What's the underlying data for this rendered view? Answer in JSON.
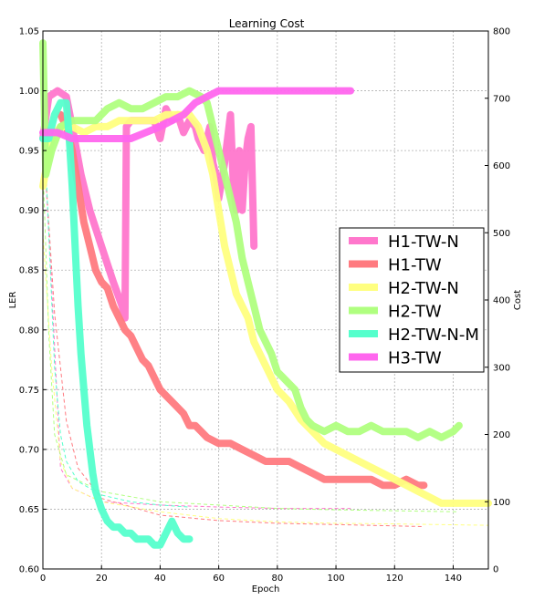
{
  "chart_data": {
    "type": "line",
    "title": "Learning Cost",
    "xlabel": "Epoch",
    "ylabel": "LER",
    "y2label": "Cost",
    "xlim": [
      0,
      152
    ],
    "ylim": [
      0.6,
      1.05
    ],
    "y2lim": [
      0,
      800
    ],
    "xticks": [
      "0",
      "20",
      "40",
      "60",
      "80",
      "100",
      "120",
      "140"
    ],
    "yticks": [
      "0.60",
      "0.65",
      "0.70",
      "0.75",
      "0.80",
      "0.85",
      "0.90",
      "0.95",
      "1.00",
      "1.05"
    ],
    "y2ticks": [
      "0",
      "100",
      "200",
      "300",
      "400",
      "500",
      "600",
      "700",
      "800"
    ],
    "grid": true,
    "legend_position": "center-right",
    "series": [
      {
        "name": "H1-TW-N",
        "color": "#ff77cc",
        "ler": [
          [
            0,
            0.96
          ],
          [
            2,
            0.995
          ],
          [
            5,
            1.0
          ],
          [
            8,
            0.995
          ],
          [
            10,
            0.97
          ],
          [
            13,
            0.93
          ],
          [
            16,
            0.9
          ],
          [
            20,
            0.87
          ],
          [
            24,
            0.84
          ],
          [
            27,
            0.82
          ],
          [
            28,
            0.81
          ],
          [
            28.5,
            0.97
          ],
          [
            30,
            0.975
          ],
          [
            34,
            0.975
          ],
          [
            38,
            0.975
          ],
          [
            40,
            0.96
          ],
          [
            42,
            0.985
          ],
          [
            44,
            0.975
          ],
          [
            46,
            0.98
          ],
          [
            48,
            0.965
          ],
          [
            50,
            0.975
          ],
          [
            52,
            0.97
          ],
          [
            53,
            0.96
          ],
          [
            55,
            0.95
          ],
          [
            57,
            0.97
          ],
          [
            58,
            0.94
          ],
          [
            59,
            0.93
          ],
          [
            60,
            0.91
          ],
          [
            62,
            0.94
          ],
          [
            64,
            0.98
          ],
          [
            65,
            0.92
          ],
          [
            66,
            0.9
          ],
          [
            67,
            0.95
          ],
          [
            68,
            0.9
          ],
          [
            69,
            0.94
          ],
          [
            70,
            0.96
          ],
          [
            71,
            0.97
          ],
          [
            72,
            0.87
          ]
        ],
        "cost": [
          [
            0,
            660
          ],
          [
            3,
            420
          ],
          [
            6,
            150
          ],
          [
            10,
            120
          ],
          [
            20,
            100
          ],
          [
            40,
            95
          ],
          [
            60,
            92
          ],
          [
            80,
            90
          ],
          [
            100,
            90
          ],
          [
            105,
            90
          ]
        ]
      },
      {
        "name": "H1-TW",
        "color": "#ff7a80",
        "ler": [
          [
            6,
            0.98
          ],
          [
            8,
            0.97
          ],
          [
            10,
            0.95
          ],
          [
            12,
            0.92
          ],
          [
            14,
            0.89
          ],
          [
            16,
            0.87
          ],
          [
            18,
            0.85
          ],
          [
            20,
            0.84
          ],
          [
            22,
            0.835
          ],
          [
            24,
            0.82
          ],
          [
            26,
            0.81
          ],
          [
            28,
            0.8
          ],
          [
            30,
            0.795
          ],
          [
            32,
            0.785
          ],
          [
            34,
            0.775
          ],
          [
            36,
            0.77
          ],
          [
            38,
            0.76
          ],
          [
            40,
            0.75
          ],
          [
            42,
            0.745
          ],
          [
            44,
            0.74
          ],
          [
            46,
            0.735
          ],
          [
            48,
            0.73
          ],
          [
            50,
            0.72
          ],
          [
            52,
            0.72
          ],
          [
            54,
            0.715
          ],
          [
            56,
            0.71
          ],
          [
            60,
            0.705
          ],
          [
            64,
            0.705
          ],
          [
            68,
            0.7
          ],
          [
            72,
            0.695
          ],
          [
            76,
            0.69
          ],
          [
            80,
            0.69
          ],
          [
            84,
            0.69
          ],
          [
            88,
            0.685
          ],
          [
            92,
            0.68
          ],
          [
            96,
            0.675
          ],
          [
            100,
            0.675
          ],
          [
            104,
            0.675
          ],
          [
            108,
            0.675
          ],
          [
            112,
            0.675
          ],
          [
            116,
            0.67
          ],
          [
            120,
            0.67
          ],
          [
            124,
            0.675
          ],
          [
            128,
            0.67
          ],
          [
            130,
            0.67
          ]
        ],
        "cost": [
          [
            0,
            650
          ],
          [
            4,
            380
          ],
          [
            8,
            220
          ],
          [
            12,
            150
          ],
          [
            20,
            105
          ],
          [
            40,
            80
          ],
          [
            60,
            72
          ],
          [
            80,
            68
          ],
          [
            100,
            66
          ],
          [
            130,
            63
          ]
        ]
      },
      {
        "name": "H2-TW-N",
        "color": "#ffff80",
        "ler": [
          [
            0,
            0.92
          ],
          [
            3,
            0.96
          ],
          [
            6,
            0.97
          ],
          [
            10,
            0.97
          ],
          [
            14,
            0.965
          ],
          [
            18,
            0.97
          ],
          [
            22,
            0.97
          ],
          [
            26,
            0.975
          ],
          [
            30,
            0.975
          ],
          [
            34,
            0.975
          ],
          [
            38,
            0.975
          ],
          [
            42,
            0.98
          ],
          [
            46,
            0.98
          ],
          [
            50,
            0.98
          ],
          [
            53,
            0.97
          ],
          [
            56,
            0.95
          ],
          [
            58,
            0.93
          ],
          [
            60,
            0.9
          ],
          [
            62,
            0.87
          ],
          [
            64,
            0.85
          ],
          [
            66,
            0.83
          ],
          [
            68,
            0.82
          ],
          [
            70,
            0.81
          ],
          [
            72,
            0.79
          ],
          [
            74,
            0.78
          ],
          [
            76,
            0.77
          ],
          [
            78,
            0.76
          ],
          [
            80,
            0.75
          ],
          [
            84,
            0.74
          ],
          [
            88,
            0.725
          ],
          [
            92,
            0.715
          ],
          [
            96,
            0.705
          ],
          [
            100,
            0.7
          ],
          [
            104,
            0.695
          ],
          [
            108,
            0.69
          ],
          [
            112,
            0.685
          ],
          [
            116,
            0.68
          ],
          [
            120,
            0.675
          ],
          [
            124,
            0.67
          ],
          [
            128,
            0.665
          ],
          [
            132,
            0.66
          ],
          [
            136,
            0.655
          ],
          [
            140,
            0.655
          ],
          [
            144,
            0.655
          ],
          [
            148,
            0.655
          ],
          [
            152,
            0.655
          ]
        ],
        "cost": [
          [
            0,
            500
          ],
          [
            3,
            300
          ],
          [
            6,
            160
          ],
          [
            10,
            120
          ],
          [
            20,
            100
          ],
          [
            40,
            85
          ],
          [
            60,
            75
          ],
          [
            80,
            70
          ],
          [
            100,
            68
          ],
          [
            120,
            67
          ],
          [
            152,
            65
          ]
        ]
      },
      {
        "name": "H2-TW",
        "color": "#b0ff80",
        "ler": [
          [
            0,
            1.04
          ],
          [
            1,
            0.93
          ],
          [
            3,
            0.95
          ],
          [
            6,
            0.97
          ],
          [
            10,
            0.975
          ],
          [
            14,
            0.975
          ],
          [
            18,
            0.975
          ],
          [
            22,
            0.985
          ],
          [
            26,
            0.99
          ],
          [
            30,
            0.985
          ],
          [
            34,
            0.985
          ],
          [
            38,
            0.99
          ],
          [
            42,
            0.995
          ],
          [
            46,
            0.995
          ],
          [
            50,
            1.0
          ],
          [
            54,
            0.995
          ],
          [
            56,
            0.99
          ],
          [
            58,
            0.97
          ],
          [
            60,
            0.95
          ],
          [
            62,
            0.93
          ],
          [
            64,
            0.91
          ],
          [
            66,
            0.89
          ],
          [
            68,
            0.86
          ],
          [
            70,
            0.84
          ],
          [
            72,
            0.82
          ],
          [
            74,
            0.8
          ],
          [
            76,
            0.79
          ],
          [
            78,
            0.78
          ],
          [
            80,
            0.765
          ],
          [
            82,
            0.76
          ],
          [
            84,
            0.755
          ],
          [
            86,
            0.75
          ],
          [
            88,
            0.735
          ],
          [
            90,
            0.725
          ],
          [
            92,
            0.72
          ],
          [
            96,
            0.715
          ],
          [
            100,
            0.72
          ],
          [
            104,
            0.715
          ],
          [
            108,
            0.715
          ],
          [
            112,
            0.72
          ],
          [
            116,
            0.715
          ],
          [
            120,
            0.715
          ],
          [
            124,
            0.715
          ],
          [
            128,
            0.71
          ],
          [
            132,
            0.715
          ],
          [
            136,
            0.71
          ],
          [
            140,
            0.715
          ],
          [
            142,
            0.72
          ]
        ],
        "cost": [
          [
            0,
            600
          ],
          [
            2,
            350
          ],
          [
            4,
            200
          ],
          [
            8,
            140
          ],
          [
            20,
            115
          ],
          [
            40,
            100
          ],
          [
            60,
            95
          ],
          [
            80,
            90
          ],
          [
            100,
            88
          ],
          [
            142,
            85
          ]
        ]
      },
      {
        "name": "H2-TW-N-M",
        "color": "#55ffcc",
        "ler": [
          [
            0,
            0.96
          ],
          [
            2,
            0.96
          ],
          [
            4,
            0.98
          ],
          [
            6,
            0.99
          ],
          [
            8,
            0.99
          ],
          [
            9,
            0.96
          ],
          [
            10,
            0.92
          ],
          [
            11,
            0.87
          ],
          [
            12,
            0.82
          ],
          [
            13,
            0.78
          ],
          [
            14,
            0.75
          ],
          [
            15,
            0.72
          ],
          [
            16,
            0.7
          ],
          [
            17,
            0.68
          ],
          [
            18,
            0.665
          ],
          [
            20,
            0.65
          ],
          [
            22,
            0.64
          ],
          [
            24,
            0.635
          ],
          [
            26,
            0.635
          ],
          [
            28,
            0.63
          ],
          [
            30,
            0.63
          ],
          [
            32,
            0.625
          ],
          [
            34,
            0.625
          ],
          [
            36,
            0.625
          ],
          [
            38,
            0.62
          ],
          [
            40,
            0.62
          ],
          [
            42,
            0.63
          ],
          [
            44,
            0.64
          ],
          [
            46,
            0.63
          ],
          [
            48,
            0.625
          ],
          [
            50,
            0.625
          ]
        ],
        "cost": [
          [
            0,
            700
          ],
          [
            2,
            500
          ],
          [
            4,
            300
          ],
          [
            6,
            200
          ],
          [
            8,
            160
          ],
          [
            12,
            130
          ],
          [
            20,
            110
          ],
          [
            30,
            100
          ],
          [
            40,
            95
          ],
          [
            50,
            92
          ]
        ]
      },
      {
        "name": "H3-TW",
        "color": "#ff66ee",
        "ler": [
          [
            0,
            0.965
          ],
          [
            5,
            0.965
          ],
          [
            10,
            0.96
          ],
          [
            15,
            0.96
          ],
          [
            20,
            0.96
          ],
          [
            25,
            0.96
          ],
          [
            30,
            0.96
          ],
          [
            35,
            0.965
          ],
          [
            40,
            0.97
          ],
          [
            44,
            0.975
          ],
          [
            48,
            0.98
          ],
          [
            52,
            0.99
          ],
          [
            56,
            0.995
          ],
          [
            60,
            1.0
          ],
          [
            65,
            1.0
          ],
          [
            70,
            1.0
          ],
          [
            75,
            1.0
          ],
          [
            80,
            1.0
          ],
          [
            85,
            1.0
          ],
          [
            90,
            1.0
          ],
          [
            95,
            1.0
          ],
          [
            100,
            1.0
          ],
          [
            105,
            1.0
          ]
        ],
        "cost": []
      }
    ]
  }
}
